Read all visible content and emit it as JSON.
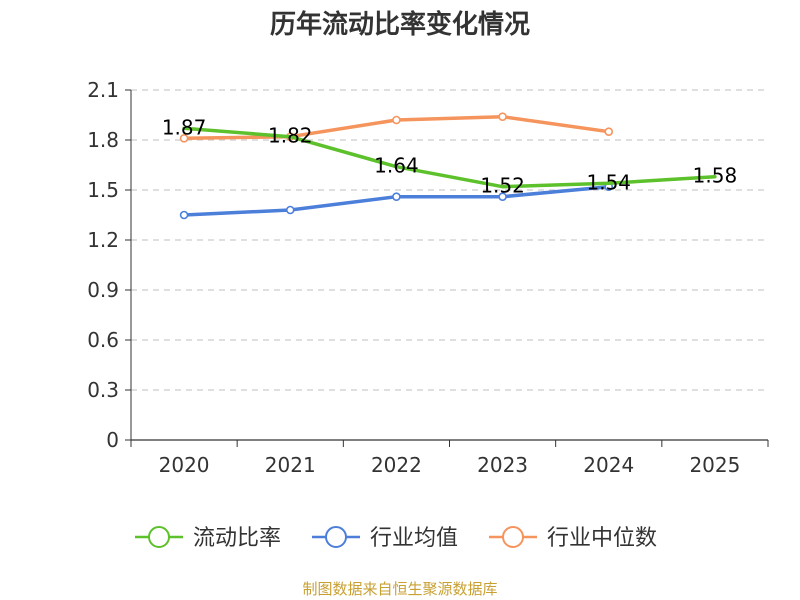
{
  "chart_data": {
    "type": "line",
    "title": "历年流动比率变化情况",
    "categories": [
      "2020",
      "2021",
      "2022",
      "2023",
      "2024",
      "2025"
    ],
    "ylim": [
      0,
      2.1
    ],
    "yticks": [
      "0",
      "0.3",
      "0.6",
      "0.9",
      "1.2",
      "1.5",
      "1.8",
      "2.1"
    ],
    "grid": true,
    "legend_position": "bottom",
    "series": [
      {
        "name": "流动比率",
        "color": "#5cc12b",
        "marker": "none",
        "values": [
          1.87,
          1.82,
          1.64,
          1.52,
          1.54,
          1.58
        ],
        "labels": [
          "1.87",
          "1.82",
          "1.64",
          "1.52",
          "1.54",
          "1.58"
        ]
      },
      {
        "name": "行业均值",
        "color": "#4c7fda",
        "marker": "circle",
        "values": [
          1.35,
          1.38,
          1.46,
          1.46,
          1.52,
          null
        ]
      },
      {
        "name": "行业中位数",
        "color": "#f5945c",
        "marker": "circle",
        "values": [
          1.81,
          1.82,
          1.92,
          1.94,
          1.85,
          null
        ]
      }
    ]
  },
  "source": "制图数据来自恒生聚源数据库"
}
